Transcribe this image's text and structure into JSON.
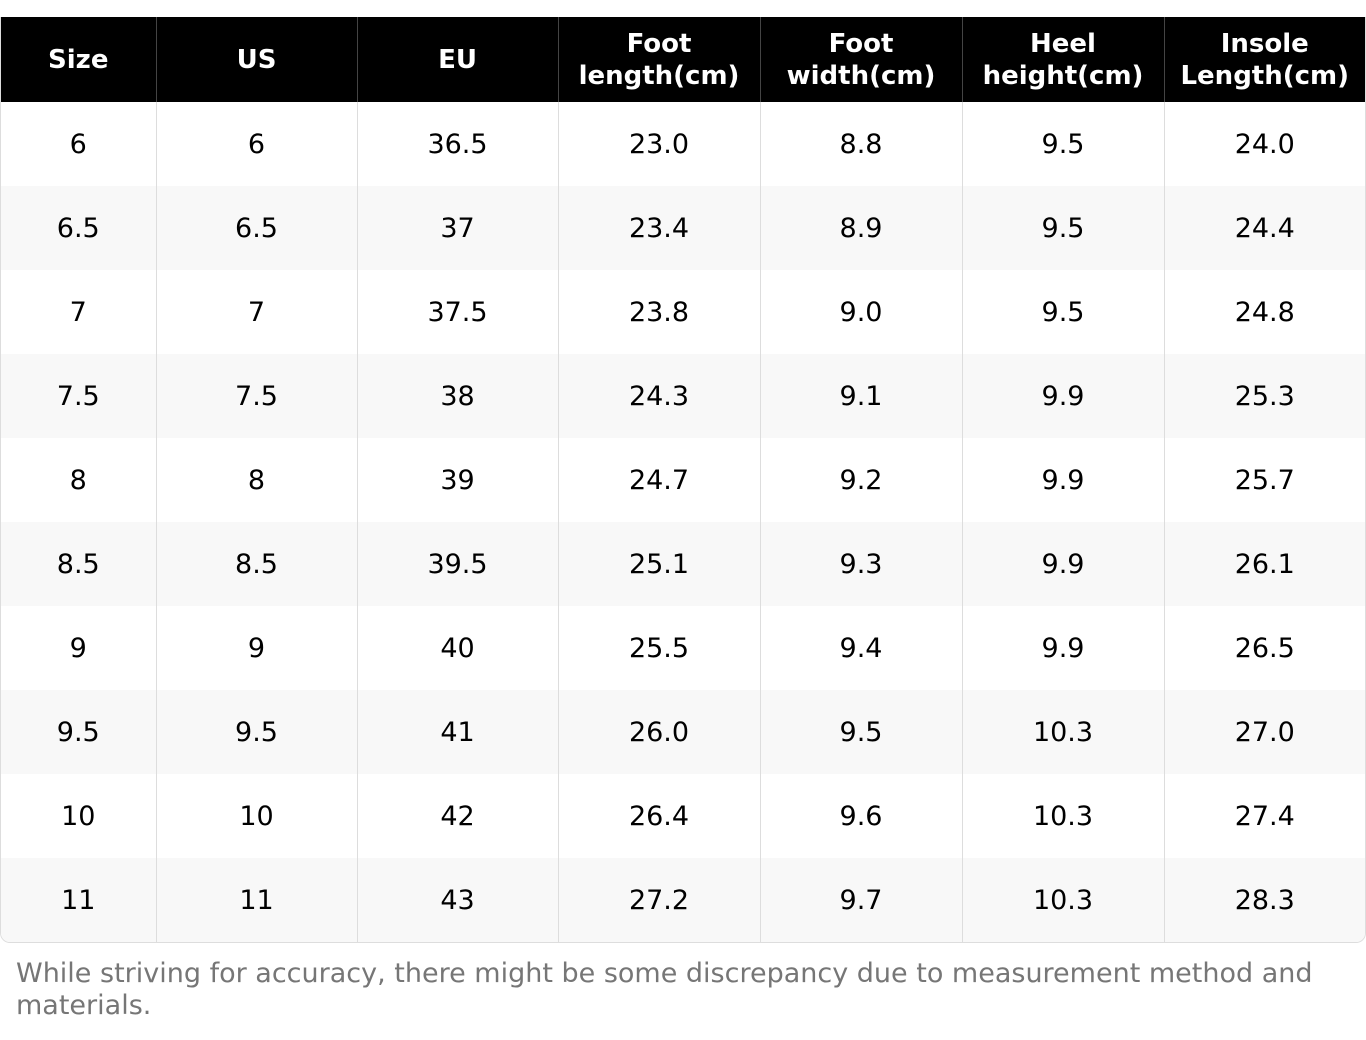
{
  "table": {
    "header": [
      "Size",
      "US",
      "EU",
      "Foot length(cm)",
      "Foot width(cm)",
      "Heel height(cm)",
      "Insole Length(cm)"
    ],
    "rows": [
      [
        "6",
        "6",
        "36.5",
        "23.0",
        "8.8",
        "9.5",
        "24.0"
      ],
      [
        "6.5",
        "6.5",
        "37",
        "23.4",
        "8.9",
        "9.5",
        "24.4"
      ],
      [
        "7",
        "7",
        "37.5",
        "23.8",
        "9.0",
        "9.5",
        "24.8"
      ],
      [
        "7.5",
        "7.5",
        "38",
        "24.3",
        "9.1",
        "9.9",
        "25.3"
      ],
      [
        "8",
        "8",
        "39",
        "24.7",
        "9.2",
        "9.9",
        "25.7"
      ],
      [
        "8.5",
        "8.5",
        "39.5",
        "25.1",
        "9.3",
        "9.9",
        "26.1"
      ],
      [
        "9",
        "9",
        "40",
        "25.5",
        "9.4",
        "9.9",
        "26.5"
      ],
      [
        "9.5",
        "9.5",
        "41",
        "26.0",
        "9.5",
        "10.3",
        "27.0"
      ],
      [
        "10",
        "10",
        "42",
        "26.4",
        "9.6",
        "10.3",
        "27.4"
      ],
      [
        "11",
        "11",
        "43",
        "27.2",
        "9.7",
        "10.3",
        "28.3"
      ]
    ]
  },
  "note": "While striving for accuracy, there might be some discrepancy due to measurement method and materials."
}
